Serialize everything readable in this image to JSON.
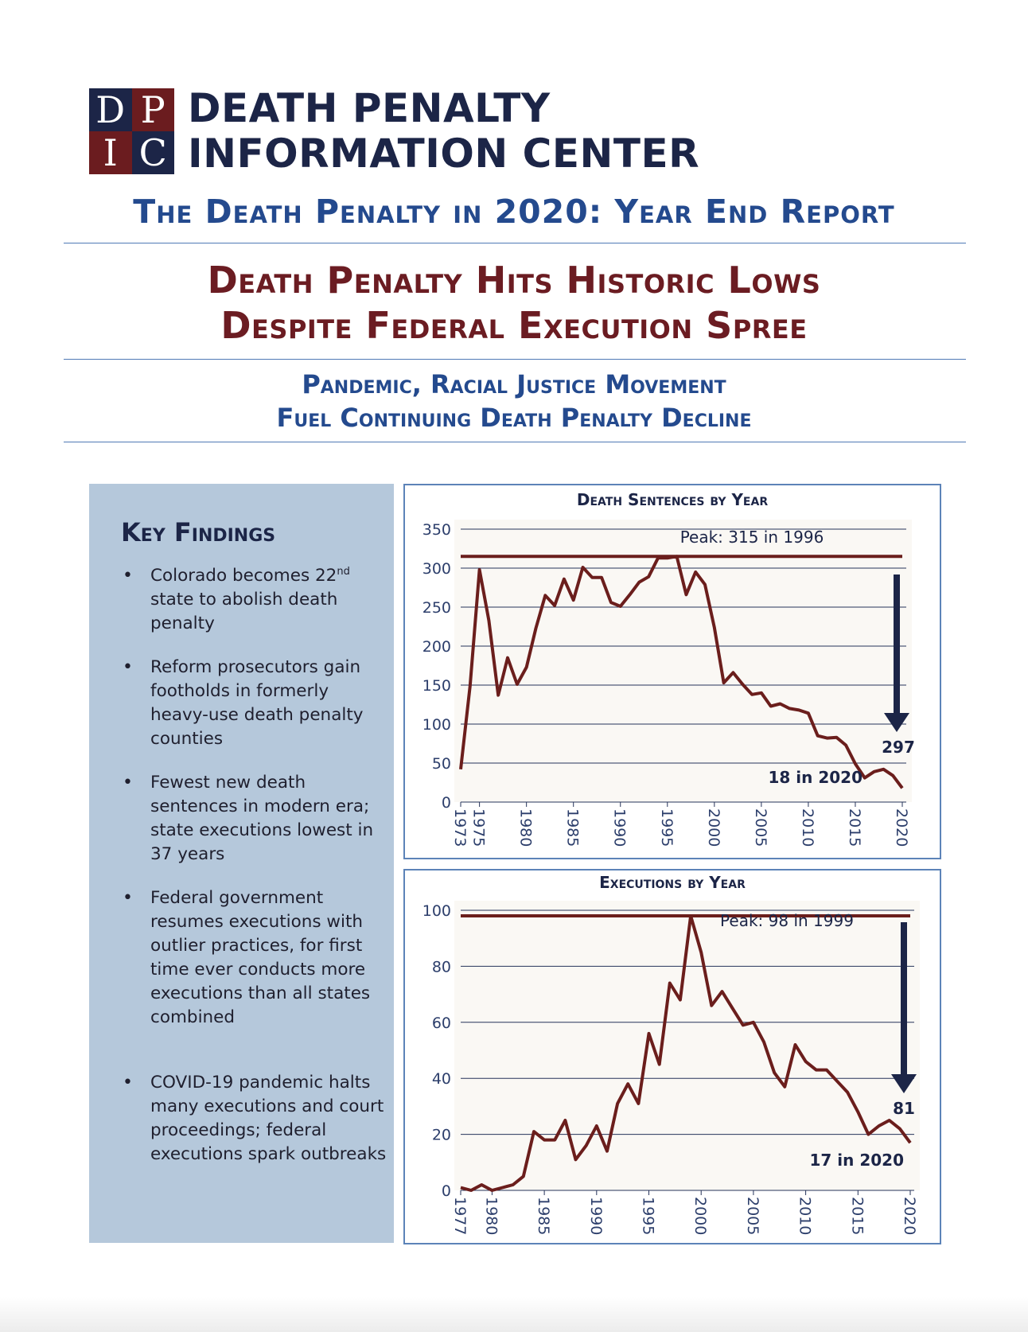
{
  "logo": {
    "letters": [
      "D",
      "P",
      "I",
      "C"
    ],
    "org_line1": "DEATH PENALTY",
    "org_line2": "INFORMATION CENTER"
  },
  "report_title": "The Death Penalty in 2020: Year End Report",
  "headline": {
    "line1": "Death Penalty Hits Historic Lows",
    "line2": "Despite Federal Execution Spree"
  },
  "subhead": {
    "line1": "Pandemic, Racial Justice Movement",
    "line2": "Fuel Continuing Death Penalty Decline"
  },
  "key_findings": {
    "title": "Key Findings",
    "items": [
      {
        "pre": "Colorado becomes 22",
        "sup": "nd",
        "post": " state to abolish death penalty"
      },
      {
        "pre": "Reform prosecutors gain footholds in formerly heavy-use death penalty counties",
        "sup": "",
        "post": ""
      },
      {
        "pre": "Fewest new death sentences in modern era; state executions lowest in 37 years",
        "sup": "",
        "post": ""
      },
      {
        "pre": "Federal government resumes executions with outlier practices, for first time ever conducts more executions than all states combined",
        "sup": "",
        "post": ""
      },
      {
        "pre": "COVID-19 pandemic halts many executions and court proceedings; federal executions spark outbreaks",
        "sup": "",
        "post": ""
      }
    ]
  },
  "colors": {
    "navy": "#1c2547",
    "maroon": "#6b1c1f",
    "blue_heading": "#244a8e",
    "line": "#6b1e1c",
    "panel": "#b5c8db"
  },
  "chart_data": [
    {
      "type": "line",
      "title": "Death Sentences by Year",
      "xlabel": "",
      "ylabel": "",
      "x": [
        1973,
        1974,
        1975,
        1976,
        1977,
        1978,
        1979,
        1980,
        1981,
        1982,
        1983,
        1984,
        1985,
        1986,
        1987,
        1988,
        1989,
        1990,
        1991,
        1992,
        1993,
        1994,
        1995,
        1996,
        1997,
        1998,
        1999,
        2000,
        2001,
        2002,
        2003,
        2004,
        2005,
        2006,
        2007,
        2008,
        2009,
        2010,
        2011,
        2012,
        2013,
        2014,
        2015,
        2016,
        2017,
        2018,
        2019,
        2020
      ],
      "y": [
        42,
        149,
        298,
        233,
        137,
        185,
        151,
        173,
        223,
        265,
        252,
        286,
        259,
        301,
        288,
        288,
        256,
        251,
        266,
        282,
        289,
        313,
        313,
        315,
        266,
        295,
        279,
        224,
        153,
        166,
        151,
        138,
        140,
        123,
        126,
        120,
        118,
        114,
        85,
        82,
        83,
        73,
        49,
        31,
        39,
        42,
        34,
        18
      ],
      "ylim": [
        0,
        350
      ],
      "yticks": [
        0,
        50,
        100,
        150,
        200,
        250,
        300,
        350
      ],
      "xticks": [
        1973,
        1975,
        1980,
        1985,
        1990,
        1995,
        2000,
        2005,
        2010,
        2015,
        2020
      ],
      "peak_value": 315,
      "peak_label": "Peak: 315 in 1996",
      "drop_label": "297",
      "end_label": "18 in 2020",
      "grid": true
    },
    {
      "type": "line",
      "title": "Executions by Year",
      "xlabel": "",
      "ylabel": "",
      "x": [
        1977,
        1978,
        1979,
        1980,
        1981,
        1982,
        1983,
        1984,
        1985,
        1986,
        1987,
        1988,
        1989,
        1990,
        1991,
        1992,
        1993,
        1994,
        1995,
        1996,
        1997,
        1998,
        1999,
        2000,
        2001,
        2002,
        2003,
        2004,
        2005,
        2006,
        2007,
        2008,
        2009,
        2010,
        2011,
        2012,
        2013,
        2014,
        2015,
        2016,
        2017,
        2018,
        2019,
        2020
      ],
      "y": [
        1,
        0,
        2,
        0,
        1,
        2,
        5,
        21,
        18,
        18,
        25,
        11,
        16,
        23,
        14,
        31,
        38,
        31,
        56,
        45,
        74,
        68,
        98,
        85,
        66,
        71,
        65,
        59,
        60,
        53,
        42,
        37,
        52,
        46,
        43,
        43,
        39,
        35,
        28,
        20,
        23,
        25,
        22,
        17
      ],
      "ylim": [
        0,
        100
      ],
      "yticks": [
        0,
        20,
        40,
        60,
        80,
        100
      ],
      "xticks": [
        1977,
        1980,
        1985,
        1990,
        1995,
        2000,
        2005,
        2010,
        2015,
        2020
      ],
      "peak_value": 98,
      "peak_label": "Peak: 98 in 1999",
      "drop_label": "81",
      "end_label": "17 in 2020",
      "grid": true
    }
  ]
}
